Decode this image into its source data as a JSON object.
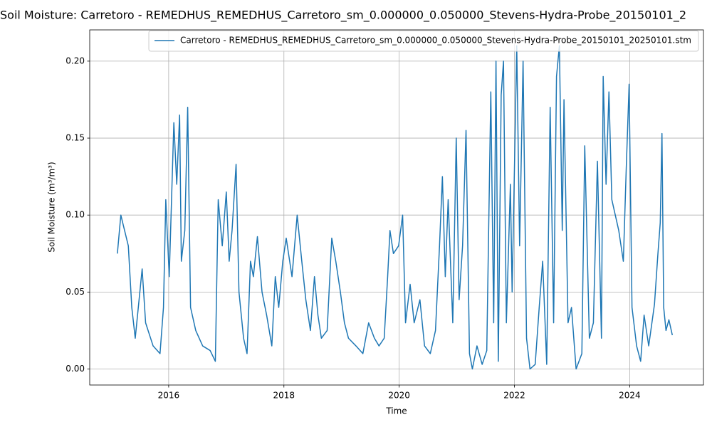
{
  "chart_data": {
    "type": "line",
    "title": "Soil Moisture: Carretoro - REMEDHUS_REMEDHUS_Carretoro_sm_0.000000_0.050000_Stevens-Hydra-Probe_20150101_2",
    "x_label": "Time",
    "y_label": "Soil Moisture (m³/m³)",
    "x": [
      2015.11,
      2015.17,
      2015.3,
      2015.36,
      2015.42,
      2015.54,
      2015.6,
      2015.73,
      2015.85,
      2015.91,
      2015.95,
      2016.01,
      2016.09,
      2016.14,
      2016.19,
      2016.22,
      2016.28,
      2016.33,
      2016.38,
      2016.47,
      2016.59,
      2016.72,
      2016.81,
      2016.86,
      2016.93,
      2017.0,
      2017.05,
      2017.1,
      2017.17,
      2017.22,
      2017.3,
      2017.36,
      2017.42,
      2017.47,
      2017.54,
      2017.62,
      2017.7,
      2017.79,
      2017.85,
      2017.91,
      2017.98,
      2018.04,
      2018.14,
      2018.23,
      2018.31,
      2018.38,
      2018.46,
      2018.53,
      2018.59,
      2018.65,
      2018.75,
      2018.83,
      2018.9,
      2018.98,
      2019.05,
      2019.12,
      2019.25,
      2019.37,
      2019.47,
      2019.57,
      2019.65,
      2019.74,
      2019.8,
      2019.84,
      2019.9,
      2019.99,
      2020.06,
      2020.11,
      2020.19,
      2020.26,
      2020.36,
      2020.44,
      2020.54,
      2020.63,
      2020.7,
      2020.75,
      2020.8,
      2020.85,
      2020.93,
      2020.99,
      2021.04,
      2021.1,
      2021.16,
      2021.22,
      2021.27,
      2021.35,
      2021.44,
      2021.52,
      2021.59,
      2021.64,
      2021.68,
      2021.72,
      2021.77,
      2021.81,
      2021.86,
      2021.93,
      2021.96,
      2022.04,
      2022.09,
      2022.15,
      2022.21,
      2022.27,
      2022.36,
      2022.43,
      2022.49,
      2022.56,
      2022.62,
      2022.68,
      2022.73,
      2022.78,
      2022.83,
      2022.86,
      2022.93,
      2022.99,
      2023.07,
      2023.17,
      2023.22,
      2023.3,
      2023.37,
      2023.44,
      2023.51,
      2023.54,
      2023.59,
      2023.64,
      2023.69,
      2023.75,
      2023.81,
      2023.89,
      2023.94,
      2023.99,
      2024.04,
      2024.12,
      2024.19,
      2024.25,
      2024.33,
      2024.43,
      2024.49,
      2024.53,
      2024.56,
      2024.59,
      2024.63,
      2024.68,
      2024.74
    ],
    "series": [
      {
        "name": "Carretoro - REMEDHUS_REMEDHUS_Carretoro_sm_0.000000_0.050000_Stevens-Hydra-Probe_20150101_20250101.stm",
        "color": "#1f77b4",
        "values": [
          0.075,
          0.1,
          0.08,
          0.04,
          0.02,
          0.065,
          0.03,
          0.015,
          0.01,
          0.04,
          0.11,
          0.06,
          0.16,
          0.12,
          0.165,
          0.07,
          0.09,
          0.17,
          0.04,
          0.025,
          0.015,
          0.012,
          0.005,
          0.11,
          0.08,
          0.115,
          0.07,
          0.09,
          0.133,
          0.05,
          0.02,
          0.01,
          0.07,
          0.06,
          0.086,
          0.05,
          0.035,
          0.015,
          0.06,
          0.04,
          0.07,
          0.085,
          0.06,
          0.1,
          0.07,
          0.045,
          0.025,
          0.06,
          0.035,
          0.02,
          0.025,
          0.085,
          0.07,
          0.05,
          0.03,
          0.02,
          0.015,
          0.01,
          0.03,
          0.02,
          0.015,
          0.02,
          0.06,
          0.09,
          0.075,
          0.08,
          0.1,
          0.03,
          0.055,
          0.03,
          0.045,
          0.015,
          0.01,
          0.025,
          0.08,
          0.125,
          0.06,
          0.11,
          0.03,
          0.15,
          0.045,
          0.08,
          0.155,
          0.01,
          0.0,
          0.015,
          0.003,
          0.012,
          0.18,
          0.03,
          0.2,
          0.005,
          0.178,
          0.2,
          0.03,
          0.12,
          0.05,
          0.21,
          0.08,
          0.2,
          0.02,
          0.0,
          0.003,
          0.04,
          0.07,
          0.003,
          0.17,
          0.03,
          0.19,
          0.21,
          0.09,
          0.175,
          0.03,
          0.04,
          0.0,
          0.01,
          0.145,
          0.02,
          0.03,
          0.135,
          0.02,
          0.19,
          0.12,
          0.18,
          0.11,
          0.1,
          0.09,
          0.07,
          0.13,
          0.185,
          0.04,
          0.015,
          0.005,
          0.035,
          0.015,
          0.042,
          0.075,
          0.095,
          0.153,
          0.04,
          0.025,
          0.032,
          0.022
        ]
      }
    ],
    "xlim": [
      2014.63,
      2025.28
    ],
    "ylim": [
      -0.0104,
      0.2203
    ],
    "xticks": [
      2016,
      2018,
      2020,
      2022,
      2024
    ],
    "yticks": [
      {
        "value": 0,
        "label": "0.00"
      },
      {
        "value": 0.05,
        "label": "0.05"
      },
      {
        "value": 0.1,
        "label": "0.10"
      },
      {
        "value": 0.15,
        "label": "0.15"
      },
      {
        "value": 0.2,
        "label": "0.20"
      }
    ],
    "grid": true,
    "legend_position": "upper right"
  }
}
